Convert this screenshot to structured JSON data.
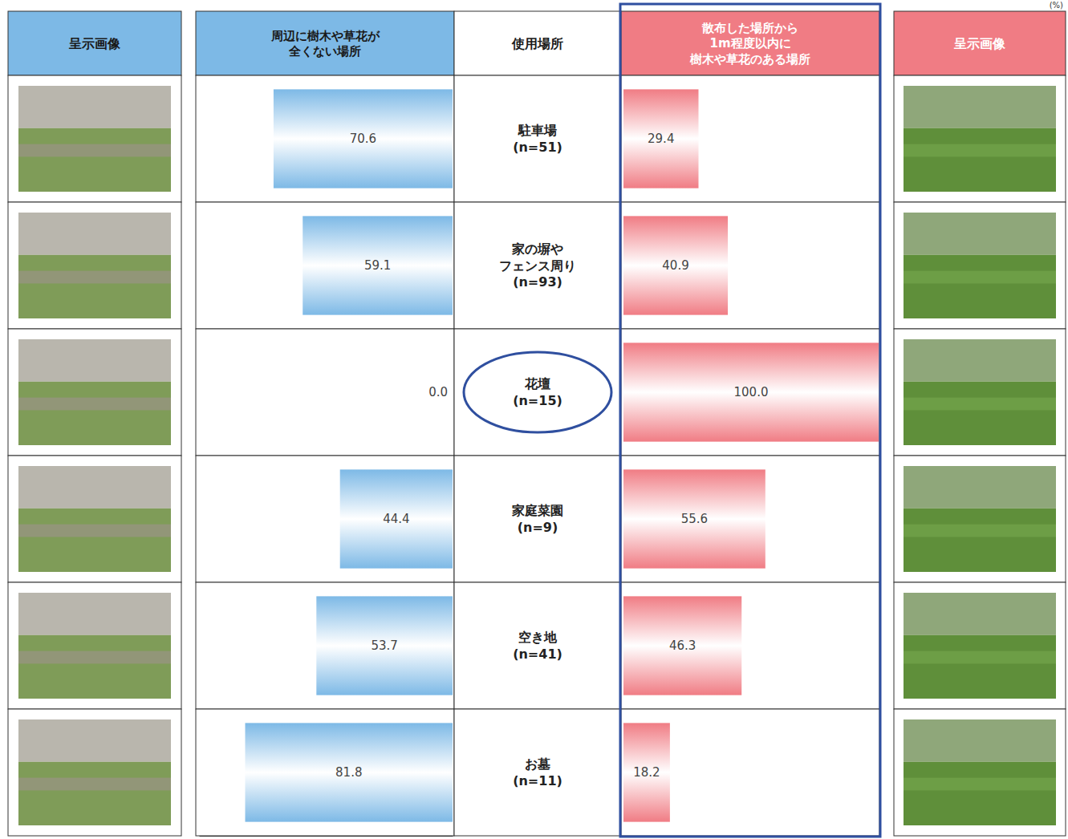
{
  "chart_data": {
    "type": "bar",
    "orientation": "horizontal",
    "data_labels": true,
    "tick_labels": false,
    "xlim": [
      0,
      100
    ],
    "annotations": [
      "呈示画像",
      "使用場所",
      "呈示画像",
      "(%)"
    ],
    "categories": [
      "駐車場\n(n=51)",
      "家の塀や\nフェンス周り\n(n=93)",
      "花壇\n(n=15)",
      "家庭菜園\n(n=9)",
      "空き地\n(n=41)",
      "お墓\n(n=11)"
    ],
    "series": [
      {
        "name": "周辺に樹木や草花が\n全くない場所",
        "color": "#7db9e6",
        "values": [
          70.6,
          59.1,
          0.0,
          44.4,
          53.7,
          81.8
        ],
        "value_labels": [
          "70.6",
          "59.1",
          "0.0",
          "44.4",
          "53.7",
          "81.8"
        ]
      },
      {
        "name": "散布した場所から\n1m程度以内に\n樹木や草花のある場所",
        "color": "#f07c84",
        "values": [
          29.4,
          40.9,
          100.0,
          55.6,
          46.3,
          18.2
        ],
        "value_labels": [
          "29.4",
          "40.9",
          "100.0",
          "55.6",
          "46.3",
          "18.2"
        ]
      }
    ]
  }
}
